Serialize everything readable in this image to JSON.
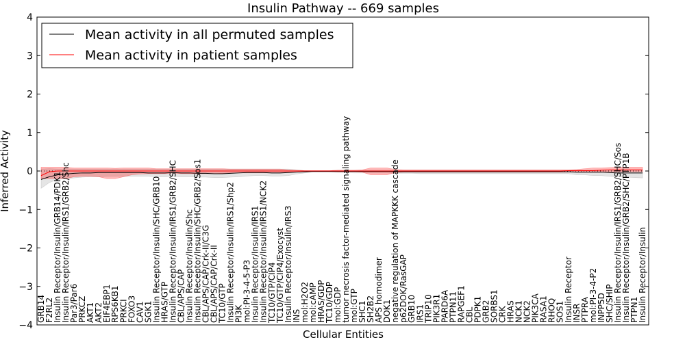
{
  "chart_data": {
    "type": "line",
    "title": "Insulin Pathway -- 669 samples",
    "xlabel": "Cellular Entities",
    "ylabel": "Inferred Activity",
    "ylim": [
      -4,
      4
    ],
    "yticks": [
      "4",
      "3",
      "2",
      "1",
      "0",
      "−1",
      "−2",
      "−3",
      "−4"
    ],
    "ytick_values": [
      4,
      3,
      2,
      1,
      0,
      -1,
      -2,
      -3,
      -4
    ],
    "legend": {
      "placement": "top-left",
      "entries": [
        {
          "label": "Mean activity in all permuted samples",
          "color": "#000000"
        },
        {
          "label": "Mean activity in patient samples",
          "color": "#ff0000"
        }
      ]
    },
    "categories": [
      "GRB14",
      "F2RL2",
      "Insulin Receptor/Insulin/GRB14/PDK1",
      "Insulin Receptor/Insulin/IRS1/GRB2/Shc",
      "Par3/Par6",
      "PRKCZ",
      "AKT1",
      "AKT2",
      "EIF4EBP1",
      "RPS6KB1",
      "PRKCI",
      "FOXO3",
      "CAV1",
      "SGK1",
      "Insulin Receptor/Insulin/SHC/GRB10",
      "HRAS/GTP",
      "Insulin Receptor/Insulin/IRS1/GRB2/SHC",
      "CBL/APS/CAP",
      "Insulin Receptor/Insulin/Shc",
      "Insulin Receptor/Insulin/SHC/GRB2/Sos1",
      "CBL/APS/CAP/Crk-II/C3G",
      "CBL/APS/CAP/Crk-II",
      "TC10/GTP",
      "Insulin Receptor/Insulin/IRS1/Shp2",
      "PI3K",
      "mol:PI-3-4-5-P3",
      "Insulin Receptor/Insulin/IRS1",
      "Insulin Receptor/Insulin/IRS1/NCK2",
      "TC10/GTP/CIP4",
      "TC10/GTP/CIP4/Exocyst",
      "Insulin Receptor/Insulin/IRS3",
      "INS",
      "mol:H2O2",
      "mol:cAMP",
      "HRAS/GDP",
      "TC10/GDP",
      "mol:GDP",
      "tumor necrosis factor-mediated signaling pathway",
      "mol:GTP",
      "SHC1",
      "SH2B2",
      "APS homodimer",
      "DOK1",
      "negative regulation of MAPKKK cascade",
      "p62DOK/RasGAP",
      "GRB10",
      "IRS1",
      "TRIP10",
      "PIK3R1",
      "PARD6A",
      "PTPN11",
      "RAPGEF1",
      "CBL",
      "PDPK1",
      "GRB2",
      "SORBS1",
      "CRK",
      "HRAS",
      "NCK1",
      "NCK2",
      "PIK3CA",
      "RASA1",
      "RHOQ",
      "SOS1",
      "Insulin Receptor",
      "INSR",
      "PTPRA",
      "mol:PI-3-4-P2",
      "INPP5D",
      "SHC/SHIP",
      "Insulin Receptor/Insulin/IRS1/GRB2/SHC/Sos",
      "Insulin Receptor/Insulin/GRB2/SHC/PTP1B",
      "PTPN1",
      "Insulin Receptor/Insulin"
    ],
    "series": [
      {
        "name": "Mean activity in all permuted samples",
        "color": "#000000",
        "values": [
          -0.22,
          -0.15,
          -0.1,
          -0.08,
          -0.06,
          -0.05,
          -0.05,
          -0.04,
          -0.04,
          -0.04,
          -0.04,
          -0.04,
          -0.04,
          -0.05,
          -0.05,
          -0.05,
          -0.04,
          -0.05,
          -0.05,
          -0.06,
          -0.06,
          -0.07,
          -0.07,
          -0.06,
          -0.05,
          -0.04,
          -0.04,
          -0.04,
          -0.05,
          -0.05,
          -0.04,
          -0.03,
          -0.02,
          -0.01,
          -0.01,
          -0.01,
          -0.01,
          -0.01,
          -0.01,
          -0.01,
          -0.01,
          -0.01,
          -0.01,
          -0.02,
          -0.02,
          -0.02,
          -0.02,
          -0.02,
          -0.02,
          -0.02,
          -0.02,
          -0.02,
          -0.02,
          -0.02,
          -0.02,
          -0.02,
          -0.02,
          -0.02,
          -0.02,
          -0.02,
          -0.02,
          -0.02,
          -0.02,
          -0.02,
          -0.02,
          -0.03,
          -0.03,
          -0.03,
          -0.03,
          -0.04,
          -0.05,
          -0.05,
          -0.05,
          -0.05
        ],
        "band_lower": [
          -0.45,
          -0.3,
          -0.22,
          -0.2,
          -0.18,
          -0.16,
          -0.15,
          -0.15,
          -0.14,
          -0.14,
          -0.14,
          -0.14,
          -0.14,
          -0.14,
          -0.15,
          -0.15,
          -0.14,
          -0.15,
          -0.15,
          -0.16,
          -0.16,
          -0.17,
          -0.17,
          -0.16,
          -0.15,
          -0.13,
          -0.12,
          -0.12,
          -0.13,
          -0.13,
          -0.12,
          -0.08,
          -0.05,
          -0.03,
          -0.03,
          -0.03,
          -0.04,
          -0.04,
          -0.05,
          -0.05,
          -0.05,
          -0.05,
          -0.05,
          -0.06,
          -0.06,
          -0.06,
          -0.07,
          -0.07,
          -0.07,
          -0.07,
          -0.07,
          -0.07,
          -0.07,
          -0.07,
          -0.07,
          -0.07,
          -0.07,
          -0.07,
          -0.07,
          -0.07,
          -0.07,
          -0.07,
          -0.07,
          -0.07,
          -0.07,
          -0.1,
          -0.1,
          -0.12,
          -0.12,
          -0.14,
          -0.15,
          -0.16,
          -0.17,
          -0.18
        ],
        "band_upper": [
          0.05,
          0.06,
          0.05,
          0.05,
          0.05,
          0.05,
          0.05,
          0.05,
          0.05,
          0.05,
          0.05,
          0.05,
          0.05,
          0.05,
          0.05,
          0.05,
          0.05,
          0.05,
          0.05,
          0.05,
          0.05,
          0.05,
          0.05,
          0.05,
          0.05,
          0.05,
          0.05,
          0.05,
          0.05,
          0.05,
          0.05,
          0.03,
          0.01,
          0.01,
          0.01,
          0.01,
          0.02,
          0.02,
          0.02,
          0.02,
          0.02,
          0.02,
          0.02,
          0.02,
          0.02,
          0.02,
          0.02,
          0.02,
          0.02,
          0.02,
          0.02,
          0.02,
          0.02,
          0.02,
          0.02,
          0.02,
          0.02,
          0.02,
          0.02,
          0.02,
          0.02,
          0.02,
          0.02,
          0.02,
          0.02,
          0.02,
          0.02,
          0.02,
          0.02,
          0.02,
          0.02,
          0.02,
          0.02,
          0.02
        ]
      },
      {
        "name": "Mean activity in patient samples",
        "color": "#ff0000",
        "values": [
          -0.12,
          -0.02,
          0.0,
          0.0,
          0.0,
          0.0,
          0.0,
          0.0,
          0.0,
          0.0,
          0.0,
          0.0,
          0.0,
          0.0,
          0.0,
          0.0,
          0.0,
          0.0,
          0.0,
          0.0,
          0.0,
          0.0,
          0.0,
          0.0,
          0.0,
          0.0,
          0.0,
          0.0,
          0.0,
          0.0,
          0.0,
          0.0,
          0.0,
          0.0,
          0.0,
          0.0,
          0.0,
          0.0,
          0.0,
          0.0,
          0.0,
          0.0,
          0.0,
          0.0,
          0.0,
          0.0,
          0.0,
          0.0,
          0.0,
          0.0,
          0.0,
          0.0,
          0.0,
          0.0,
          0.0,
          0.0,
          0.0,
          0.0,
          0.0,
          0.0,
          0.0,
          0.0,
          0.0,
          0.0,
          0.01,
          0.01,
          0.01,
          0.01,
          0.02,
          0.03,
          0.03,
          0.03,
          0.03,
          0.03
        ],
        "band_lower": [
          -0.2,
          -0.2,
          -0.2,
          -0.2,
          -0.15,
          -0.14,
          -0.14,
          -0.15,
          -0.2,
          -0.2,
          -0.15,
          -0.1,
          -0.08,
          -0.07,
          -0.07,
          -0.07,
          -0.05,
          -0.07,
          -0.07,
          -0.07,
          -0.07,
          -0.07,
          -0.06,
          -0.05,
          -0.05,
          -0.05,
          -0.05,
          -0.05,
          -0.05,
          -0.05,
          -0.03,
          -0.02,
          -0.01,
          -0.01,
          -0.01,
          -0.01,
          -0.02,
          -0.02,
          -0.02,
          -0.03,
          -0.1,
          -0.1,
          -0.1,
          -0.04,
          -0.03,
          -0.03,
          -0.03,
          -0.03,
          -0.03,
          -0.03,
          -0.03,
          -0.03,
          -0.03,
          -0.03,
          -0.03,
          -0.03,
          -0.03,
          -0.03,
          -0.03,
          -0.03,
          -0.03,
          -0.03,
          -0.03,
          -0.03,
          -0.03,
          -0.03,
          -0.03,
          -0.03,
          -0.02,
          -0.02,
          -0.02,
          -0.02,
          -0.02,
          -0.02
        ],
        "band_upper": [
          0.1,
          0.1,
          0.1,
          0.1,
          0.08,
          0.08,
          0.08,
          0.08,
          0.08,
          0.07,
          0.08,
          0.08,
          0.08,
          0.08,
          0.06,
          0.06,
          0.06,
          0.06,
          0.06,
          0.06,
          0.06,
          0.06,
          0.06,
          0.05,
          0.05,
          0.05,
          0.05,
          0.05,
          0.05,
          0.05,
          0.03,
          0.02,
          0.01,
          0.01,
          0.01,
          0.01,
          0.02,
          0.02,
          0.02,
          0.03,
          0.08,
          0.08,
          0.08,
          0.04,
          0.03,
          0.03,
          0.03,
          0.03,
          0.03,
          0.03,
          0.03,
          0.03,
          0.03,
          0.03,
          0.03,
          0.03,
          0.03,
          0.03,
          0.03,
          0.03,
          0.03,
          0.03,
          0.03,
          0.03,
          0.03,
          0.04,
          0.06,
          0.08,
          0.08,
          0.09,
          0.1,
          0.1,
          0.1,
          0.1
        ]
      }
    ]
  }
}
